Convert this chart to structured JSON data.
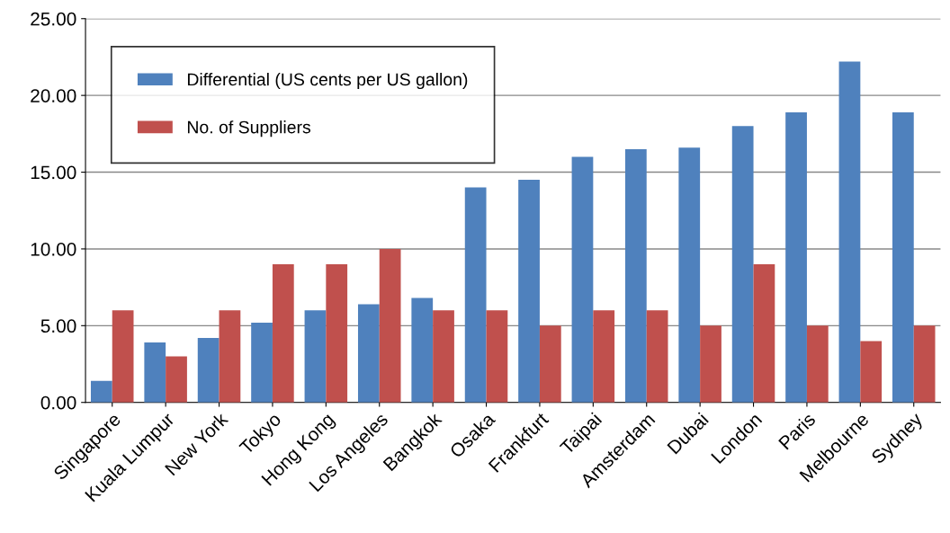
{
  "chart_data": {
    "type": "bar",
    "categories": [
      "Singapore",
      "Kuala Lumpur",
      "New York",
      "Tokyo",
      "Hong Kong",
      "Los Angeles",
      "Bangkok",
      "Osaka",
      "Frankfurt",
      "Taipai",
      "Amsterdam",
      "Dubai",
      "London",
      "Paris",
      "Melbourne",
      "Sydney"
    ],
    "series": [
      {
        "name": "Differential (US cents per US gallon)",
        "color": "#4f81bd",
        "values": [
          1.4,
          3.9,
          4.2,
          5.2,
          6.0,
          6.4,
          6.8,
          14.0,
          14.5,
          16.0,
          16.5,
          16.6,
          18.0,
          18.9,
          22.2,
          18.9
        ]
      },
      {
        "name": "No. of Suppliers",
        "color": "#c0504d",
        "values": [
          6,
          3,
          6,
          9,
          9,
          10,
          6,
          6,
          5,
          6,
          6,
          5,
          9,
          5,
          4,
          5
        ]
      }
    ],
    "ylim": [
      0,
      25
    ],
    "yticks": [
      {
        "value": 0,
        "label": "0.00"
      },
      {
        "value": 5,
        "label": "5.00"
      },
      {
        "value": 10,
        "label": "10.00"
      },
      {
        "value": 15,
        "label": "15.00"
      },
      {
        "value": 20,
        "label": "20.00"
      },
      {
        "value": 25,
        "label": "25.00"
      }
    ],
    "grid": "y",
    "legend": "top left"
  }
}
